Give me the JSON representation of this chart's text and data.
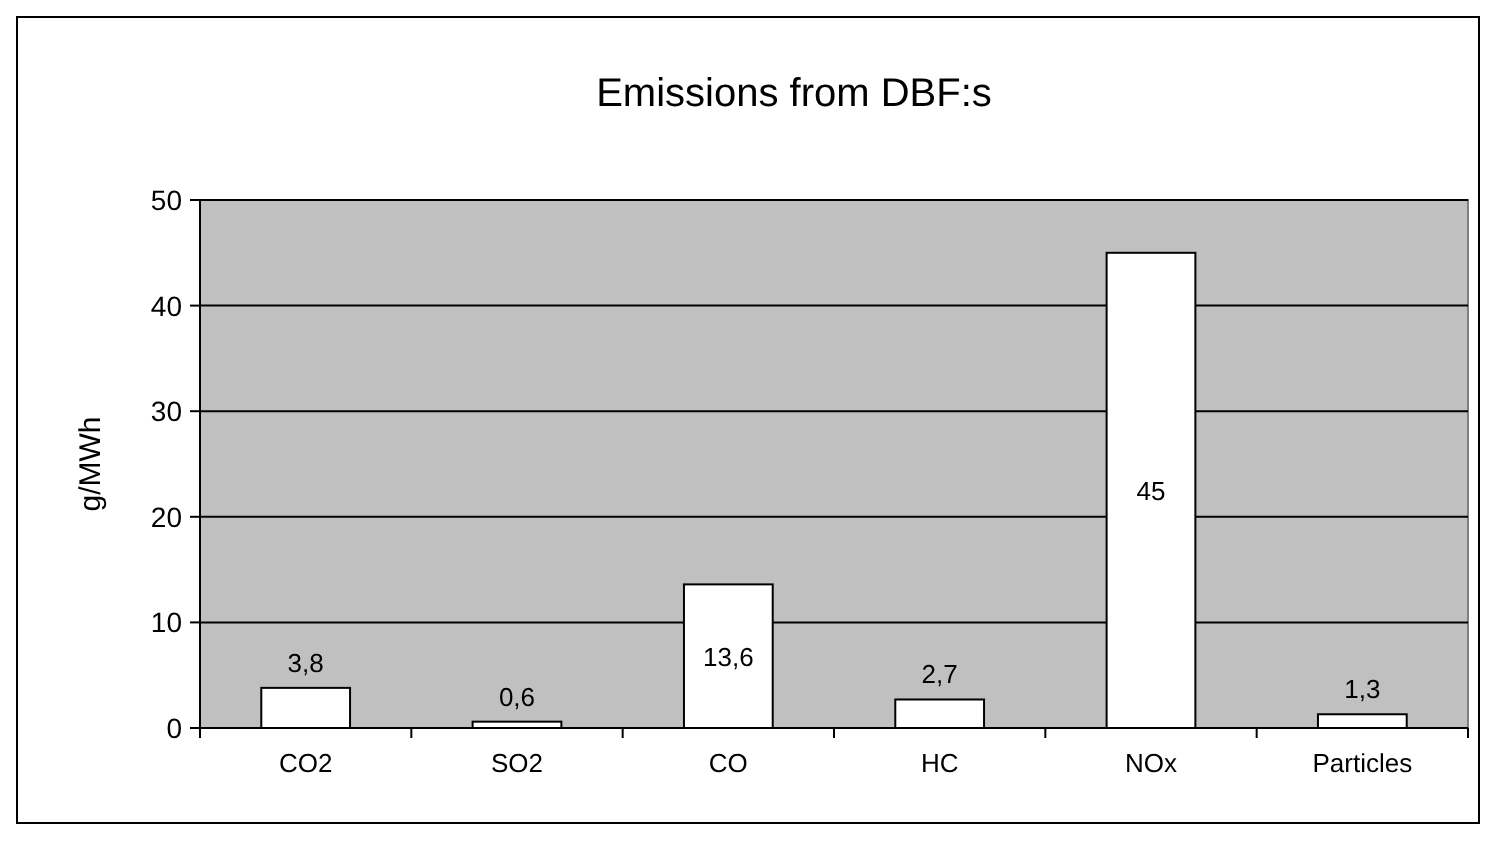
{
  "chart_data": {
    "type": "bar",
    "title": "Emissions from DBF:s",
    "ylabel": "g/MWh",
    "categories": [
      "CO2",
      "SO2",
      "CO",
      "HC",
      "NOx",
      "Particles"
    ],
    "values": [
      3.8,
      0.6,
      13.6,
      2.7,
      45,
      1.3
    ],
    "value_labels": [
      "3,8",
      "0,6",
      "13,6",
      "2,7",
      "45",
      "1,3"
    ],
    "color": "#ffffff",
    "ylim": [
      0,
      50
    ],
    "yticks": [
      0,
      10,
      20,
      30,
      40,
      50
    ],
    "grid": "y"
  }
}
